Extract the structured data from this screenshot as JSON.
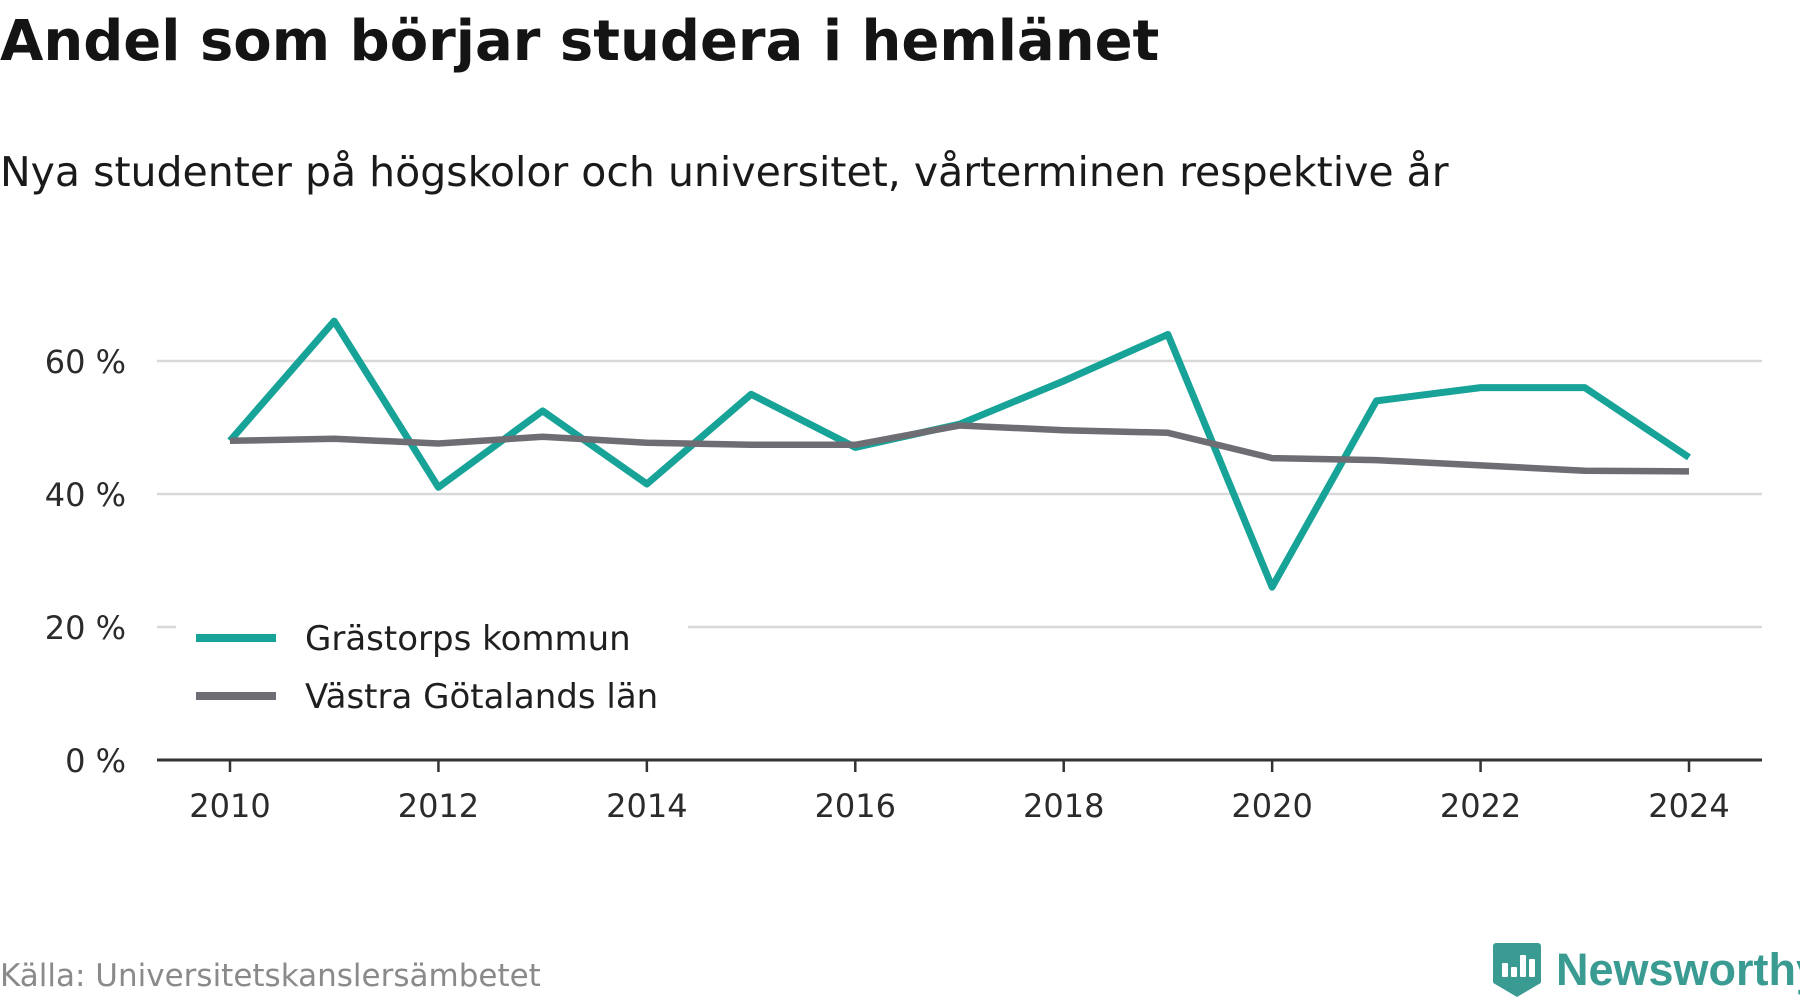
{
  "header": {
    "title": "Andel som börjar studera i hemlänet",
    "subtitle": "Nya studenter på högskolor och universitet, vårterminen respektive år"
  },
  "footer": {
    "source": "Källa: Universitetskanslersämbetet",
    "brand": "Newsworthy",
    "brand_icon": "bar-chart-badge-icon"
  },
  "colors": {
    "series_1": "#17a398",
    "series_2": "#6e6d73",
    "grid": "#d9d9d9",
    "axis": "#333333",
    "brand": "#3a9b92"
  },
  "chart_data": {
    "type": "line",
    "x": [
      2010,
      2011,
      2012,
      2013,
      2014,
      2015,
      2016,
      2017,
      2018,
      2019,
      2020,
      2021,
      2022,
      2023,
      2024
    ],
    "x_ticks": [
      2010,
      2012,
      2014,
      2016,
      2018,
      2020,
      2022,
      2024
    ],
    "y_ticks": [
      0,
      20,
      40,
      60
    ],
    "y_tick_labels": [
      "0 %",
      "20 %",
      "40 %",
      "60 %"
    ],
    "ylim": [
      0,
      66
    ],
    "grid": true,
    "legend_position": "bottom-left",
    "series": [
      {
        "name": "Grästorps kommun",
        "color": "#17a398",
        "values": [
          48,
          66,
          41,
          52.5,
          41.5,
          55,
          47,
          50.5,
          57,
          64,
          26,
          54,
          56,
          56,
          45.5
        ]
      },
      {
        "name": "Västra Götalands län",
        "color": "#6e6d73",
        "values": [
          48,
          48.3,
          47.6,
          48.6,
          47.7,
          47.4,
          47.4,
          50.3,
          49.6,
          49.2,
          45.4,
          45.1,
          44.3,
          43.5,
          43.4
        ]
      }
    ]
  }
}
